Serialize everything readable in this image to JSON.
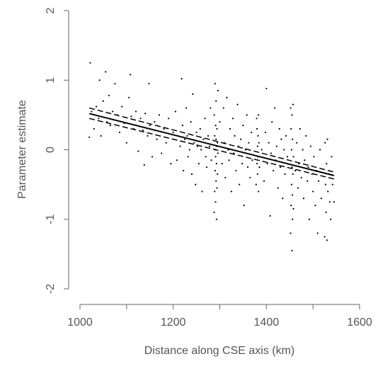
{
  "chart_data": {
    "type": "scatter",
    "xlabel": "Distance along CSE axis (km)",
    "ylabel": "Parameter estimate",
    "x": [
      1020,
      1022,
      1025,
      1030,
      1035,
      1040,
      1042,
      1045,
      1050,
      1055,
      1058,
      1062,
      1065,
      1070,
      1075,
      1080,
      1085,
      1090,
      1095,
      1100,
      1105,
      1108,
      1110,
      1115,
      1120,
      1125,
      1130,
      1135,
      1138,
      1140,
      1145,
      1148,
      1150,
      1155,
      1160,
      1165,
      1170,
      1175,
      1180,
      1185,
      1190,
      1195,
      1200,
      1205,
      1208,
      1210,
      1215,
      1218,
      1220,
      1222,
      1225,
      1228,
      1230,
      1232,
      1235,
      1238,
      1240,
      1242,
      1245,
      1248,
      1250,
      1252,
      1255,
      1258,
      1260,
      1262,
      1265,
      1268,
      1270,
      1272,
      1275,
      1278,
      1280,
      1282,
      1288,
      1288,
      1289,
      1289,
      1290,
      1290,
      1290,
      1291,
      1291,
      1291,
      1292,
      1292,
      1292,
      1293,
      1293,
      1293,
      1294,
      1294,
      1295,
      1295,
      1296,
      1296,
      1300,
      1305,
      1308,
      1310,
      1312,
      1315,
      1318,
      1320,
      1322,
      1325,
      1328,
      1330,
      1332,
      1335,
      1338,
      1340,
      1342,
      1345,
      1348,
      1350,
      1352,
      1355,
      1358,
      1360,
      1362,
      1365,
      1368,
      1370,
      1378,
      1379,
      1380,
      1380,
      1381,
      1381,
      1382,
      1382,
      1383,
      1383,
      1384,
      1385,
      1390,
      1395,
      1398,
      1400,
      1402,
      1405,
      1408,
      1410,
      1412,
      1415,
      1418,
      1420,
      1422,
      1425,
      1428,
      1430,
      1432,
      1435,
      1438,
      1440,
      1442,
      1445,
      1452,
      1452,
      1453,
      1453,
      1454,
      1454,
      1455,
      1455,
      1455,
      1456,
      1456,
      1456,
      1457,
      1457,
      1458,
      1458,
      1462,
      1465,
      1468,
      1470,
      1472,
      1475,
      1478,
      1480,
      1482,
      1485,
      1488,
      1490,
      1492,
      1495,
      1498,
      1500,
      1502,
      1505,
      1508,
      1510,
      1512,
      1515,
      1518,
      1525,
      1526,
      1527,
      1528,
      1529,
      1530,
      1531,
      1532,
      1534,
      1536,
      1538,
      1540,
      1542,
      1545
    ],
    "values": [
      0.18,
      1.25,
      0.55,
      0.3,
      0.62,
      0.45,
      1.0,
      0.2,
      0.7,
      1.12,
      0.4,
      0.78,
      0.35,
      0.55,
      0.95,
      0.5,
      0.25,
      0.62,
      0.38,
      0.1,
      0.75,
      1.08,
      0.48,
      0.3,
      0.55,
      -0.02,
      0.45,
      0.28,
      -0.22,
      0.52,
      0.2,
      0.95,
      0.35,
      -0.1,
      0.4,
      0.15,
      0.5,
      -0.05,
      0.3,
      0.1,
      0.45,
      -0.2,
      0.25,
      0.55,
      -0.15,
      0.2,
      0.05,
      1.02,
      0.35,
      -0.3,
      0.15,
      0.6,
      0.2,
      -0.1,
      0.0,
      0.4,
      -0.35,
      0.8,
      0.1,
      -0.5,
      0.25,
      0.05,
      -0.2,
      0.3,
      0.0,
      -0.6,
      0.15,
      0.45,
      -0.1,
      -0.25,
      0.2,
      0.05,
      0.6,
      -0.15,
      -0.9,
      0.5,
      -0.6,
      0.2,
      -0.3,
      0.95,
      0.0,
      -0.75,
      0.35,
      -0.1,
      0.15,
      -0.45,
      0.7,
      -1.0,
      0.05,
      -0.2,
      0.3,
      -0.55,
      0.1,
      -0.35,
      0.85,
      -0.05,
      0.4,
      -0.2,
      0.6,
      0.1,
      -0.4,
      0.75,
      0.0,
      -0.15,
      0.3,
      -0.6,
      0.45,
      -0.05,
      0.2,
      -0.3,
      0.65,
      0.05,
      -0.5,
      0.15,
      -0.2,
      0.35,
      -0.8,
      0.0,
      0.5,
      -0.25,
      0.1,
      -0.4,
      0.25,
      -0.15,
      -0.5,
      0.45,
      -0.2,
      0.3,
      0.05,
      -0.35,
      0.2,
      -0.1,
      0.5,
      -0.6,
      0.1,
      -0.25,
      0.0,
      -0.45,
      0.25,
      0.88,
      -0.2,
      0.1,
      -0.95,
      -0.05,
      0.4,
      -0.3,
      0.6,
      -0.15,
      0.05,
      -0.55,
      0.3,
      -0.25,
      0.15,
      -0.7,
      0.0,
      -0.35,
      0.2,
      -0.1,
      -1.2,
      0.6,
      -0.8,
      0.3,
      -0.5,
      0.0,
      -1.45,
      -0.25,
      0.5,
      -0.65,
      0.15,
      -1.0,
      -0.35,
      0.65,
      -0.1,
      -0.85,
      -0.3,
      0.1,
      -0.55,
      -0.2,
      0.3,
      -0.4,
      0.0,
      -0.7,
      -0.15,
      0.2,
      -0.45,
      -0.25,
      -1.0,
      0.05,
      -0.35,
      -0.6,
      -0.1,
      -0.8,
      -0.3,
      -1.2,
      -0.45,
      0.0,
      -0.7,
      -1.25,
      0.1,
      -0.5,
      -0.9,
      -0.2,
      -1.3,
      0.15,
      -0.6,
      -0.35,
      -0.75,
      -1.0,
      -0.1,
      -0.5,
      -0.75
    ],
    "color": "#000000",
    "lines": [
      {
        "style": "solid",
        "x": [
          1020,
          1545
        ],
        "values": [
          0.52,
          -0.37
        ]
      },
      {
        "style": "dashed",
        "x": [
          1020,
          1545
        ],
        "values": [
          0.6,
          -0.32
        ]
      },
      {
        "style": "dashed",
        "x": [
          1020,
          1545
        ],
        "values": [
          0.45,
          -0.42
        ]
      }
    ],
    "xlim": [
      1000,
      1600
    ],
    "xticks": [
      1000,
      1200,
      1400,
      1600
    ],
    "xminorticks": [
      1100,
      1300,
      1500
    ],
    "ylim": [
      -2,
      2
    ],
    "yticks": [
      -2,
      -1,
      0,
      1,
      2
    ]
  }
}
